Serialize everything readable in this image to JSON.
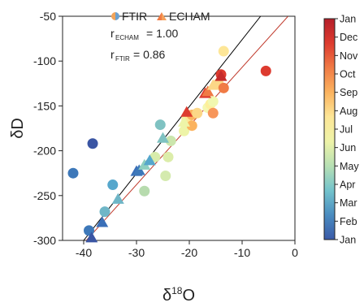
{
  "chart_data": {
    "type": "scatter",
    "xlabel": "δ18O",
    "ylabel": "δD",
    "xlim": [
      -44,
      0
    ],
    "ylim": [
      -300,
      -50
    ],
    "xticks": [
      -40,
      -30,
      -20,
      -10,
      0
    ],
    "yticks": [
      -300,
      -250,
      -200,
      -150,
      -100,
      -50
    ],
    "legend": {
      "position": "top-left",
      "entries": [
        {
          "name": "FTIR",
          "marker": "circle"
        },
        {
          "name": "ECHAM",
          "marker": "triangle"
        }
      ]
    },
    "annotations": [
      {
        "name": "ECHAM",
        "text": "= 1.00"
      },
      {
        "name": "FTIR",
        "text": "= 0.86"
      }
    ],
    "colorbar": {
      "labels": [
        "Jan",
        "Dec",
        "Nov",
        "Oct",
        "Sep",
        "Aug",
        "Jul",
        "Jun",
        "May",
        "Apr",
        "Mar",
        "Feb",
        "Jan"
      ],
      "colormap": [
        "#3a5aa8",
        "#4a8cc0",
        "#73c3cc",
        "#b7e0b4",
        "#eef3a8",
        "#fde697",
        "#fbb35f",
        "#f07b45",
        "#dd3b2f",
        "#b51f2a"
      ]
    },
    "lines": [
      {
        "name": "ECHAM",
        "color": "#000000",
        "x": [
          -40,
          -6.5
        ],
        "y": [
          -300,
          -50
        ]
      },
      {
        "name": "FTIR",
        "color": "#c0392b",
        "x": [
          -39.5,
          -1.3
        ],
        "y": [
          -300,
          -50
        ]
      }
    ],
    "series": [
      {
        "name": "FTIR",
        "marker": "circle",
        "points": [
          {
            "x": -39,
            "y": -289,
            "color": "#3d78b9"
          },
          {
            "x": -42,
            "y": -225,
            "color": "#3d78b9"
          },
          {
            "x": -38.3,
            "y": -192,
            "color": "#3a55a3"
          },
          {
            "x": -36,
            "y": -268,
            "color": "#6fb6c7"
          },
          {
            "x": -34.5,
            "y": -238,
            "color": "#56a7cc"
          },
          {
            "x": -28.5,
            "y": -245,
            "color": "#b7dbae"
          },
          {
            "x": -26.5,
            "y": -207,
            "color": "#d8ecab"
          },
          {
            "x": -25.5,
            "y": -171,
            "color": "#7fc2c2"
          },
          {
            "x": -24.5,
            "y": -228,
            "color": "#d4eaae"
          },
          {
            "x": -24,
            "y": -207,
            "color": "#dcedaa"
          },
          {
            "x": -23.5,
            "y": -189,
            "color": "#cbe6ad"
          },
          {
            "x": -21,
            "y": -178,
            "color": "#eef4a8"
          },
          {
            "x": -20.5,
            "y": -165,
            "color": "#fde697"
          },
          {
            "x": -19.5,
            "y": -172,
            "color": "#fbb35f"
          },
          {
            "x": -19.5,
            "y": -160,
            "color": "#fbb35f"
          },
          {
            "x": -18.5,
            "y": -158,
            "color": "#fcd787"
          },
          {
            "x": -16.5,
            "y": -152,
            "color": "#f5f7b0"
          },
          {
            "x": -16,
            "y": -148,
            "color": "#fdef9c"
          },
          {
            "x": -15.5,
            "y": -158,
            "color": "#f7965a"
          },
          {
            "x": -15.5,
            "y": -145,
            "color": "#f1f8b0"
          },
          {
            "x": -14.5,
            "y": -125,
            "color": "#fcd787"
          },
          {
            "x": -14,
            "y": -115,
            "color": "#dd3b2f"
          },
          {
            "x": -13.5,
            "y": -130,
            "color": "#f07b45"
          },
          {
            "x": -13.5,
            "y": -89,
            "color": "#fde697"
          },
          {
            "x": -5.5,
            "y": -111,
            "color": "#dd3b2f"
          }
        ]
      },
      {
        "name": "ECHAM",
        "marker": "triangle",
        "points": [
          {
            "x": -38.5,
            "y": -297,
            "color": "#3a55a3"
          },
          {
            "x": -36.5,
            "y": -280,
            "color": "#3a6fb8"
          },
          {
            "x": -33.5,
            "y": -254,
            "color": "#6fb6c7"
          },
          {
            "x": -30,
            "y": -223,
            "color": "#3a6fb8"
          },
          {
            "x": -29.5,
            "y": -222,
            "color": "#3d78b9"
          },
          {
            "x": -28.5,
            "y": -216,
            "color": "#8fcfc0"
          },
          {
            "x": -27.5,
            "y": -211,
            "color": "#56a7cc"
          },
          {
            "x": -25,
            "y": -186,
            "color": "#7fc2c2"
          },
          {
            "x": -21,
            "y": -168,
            "color": "#eef4a8"
          },
          {
            "x": -20.5,
            "y": -157,
            "color": "#dd3b2f"
          },
          {
            "x": -17,
            "y": -136,
            "color": "#dd3b2f"
          },
          {
            "x": -16.5,
            "y": -134,
            "color": "#f07b45"
          },
          {
            "x": -15.5,
            "y": -127,
            "color": "#fcd787"
          },
          {
            "x": -14,
            "y": -117,
            "color": "#c62b2b"
          }
        ]
      }
    ]
  }
}
